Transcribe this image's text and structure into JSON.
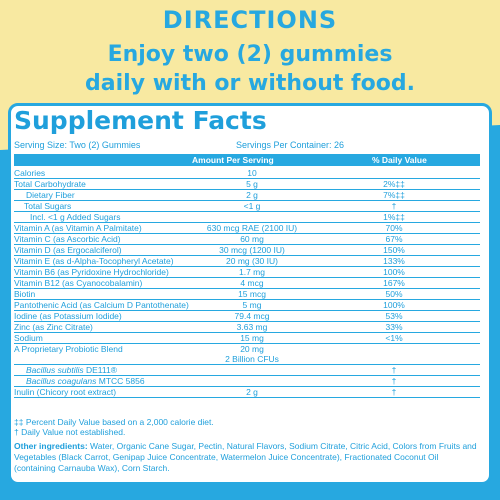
{
  "colors": {
    "accent": "#27a8e0",
    "yellow": "#f8e9a1",
    "panel": "#ffffff"
  },
  "directions": {
    "title": "DIRECTIONS",
    "line1": "Enjoy two (2) gummies",
    "line2": "daily with or without food."
  },
  "facts": {
    "title": "Supplement Facts",
    "serving_size": "Serving Size: Two (2) Gummies",
    "servings_per_container": "Servings Per Container: 26",
    "col_amount": "Amount Per Serving",
    "col_dv": "% Daily Value",
    "rows": [
      {
        "name": "Calories",
        "amount": "10",
        "dv": ""
      },
      {
        "name": "Total Carbohydrate",
        "amount": "5 g",
        "dv": "2%‡‡"
      },
      {
        "name": "Dietary Fiber",
        "amount": "2 g",
        "dv": "7%‡‡"
      },
      {
        "name": "Total  Sugars",
        "amount": "<1 g",
        "dv": "†"
      },
      {
        "name": "Incl. <1 g Added Sugars",
        "amount": "",
        "dv": "1%‡‡"
      },
      {
        "name": "Vitamin A (as Vitamin A Palmitate)",
        "amount": "630 mcg RAE (2100 IU)",
        "dv": "70%"
      },
      {
        "name": "Vitamin C (as Ascorbic Acid)",
        "amount": "60 mg",
        "dv": "67%"
      },
      {
        "name": "Vitamin D (as Ergocalciferol)",
        "amount": "30 mcg (1200 IU)",
        "dv": "150%"
      },
      {
        "name": "Vitamin E (as d-Alpha-Tocopheryl Acetate)",
        "amount": "20 mg (30 IU)",
        "dv": "133%"
      },
      {
        "name": "Vitamin B6 (as Pyridoxine Hydrochloride)",
        "amount": "1.7 mg",
        "dv": "100%"
      },
      {
        "name": "Vitamin B12 (as Cyanocobalamin)",
        "amount": "4 mcg",
        "dv": "167%"
      },
      {
        "name": "Biotin",
        "amount": "15 mcg",
        "dv": "50%"
      },
      {
        "name": "Pantothenic Acid (as Calcium D Pantothenate)",
        "amount": "5 mg",
        "dv": "100%"
      },
      {
        "name": "Iodine (as Potassium Iodide)",
        "amount": "79.4 mcg",
        "dv": "53%"
      },
      {
        "name": "Zinc (as Zinc Citrate)",
        "amount": "3.63 mg",
        "dv": "33%"
      },
      {
        "name": "Sodium",
        "amount": "15 mg",
        "dv": "<1%"
      },
      {
        "name": "A Proprietary Probiotic Blend",
        "amount": "20 mg",
        "amount2": "2 Billion CFUs",
        "dv": ""
      },
      {
        "name_italic": "Bacillus subtilis",
        "name_rest": " DE111®",
        "amount": "",
        "dv": "†"
      },
      {
        "name_italic": "Bacillus coagulans",
        "name_rest": " MTCC 5856",
        "amount": "",
        "dv": "†"
      },
      {
        "name": "Inulin (Chicory root extract)",
        "amount": "2 g",
        "dv": "†"
      }
    ],
    "footnote1": "‡‡ Percent Daily Value based on a 2,000 calorie diet.",
    "footnote2": "† Daily Value not established.",
    "ingredients_label": "Other ingredients:",
    "ingredients_text": " Water, Organic Cane Sugar, Pectin, Natural Flavors, Sodium Citrate, Citric Acid, Colors from Fruits and Vegetables (Black Carrot, Genipap Juice Concentrate, Watermelon Juice Concentrate), Fractionated Coconut Oil (containing Carnauba Wax), Corn Starch."
  }
}
